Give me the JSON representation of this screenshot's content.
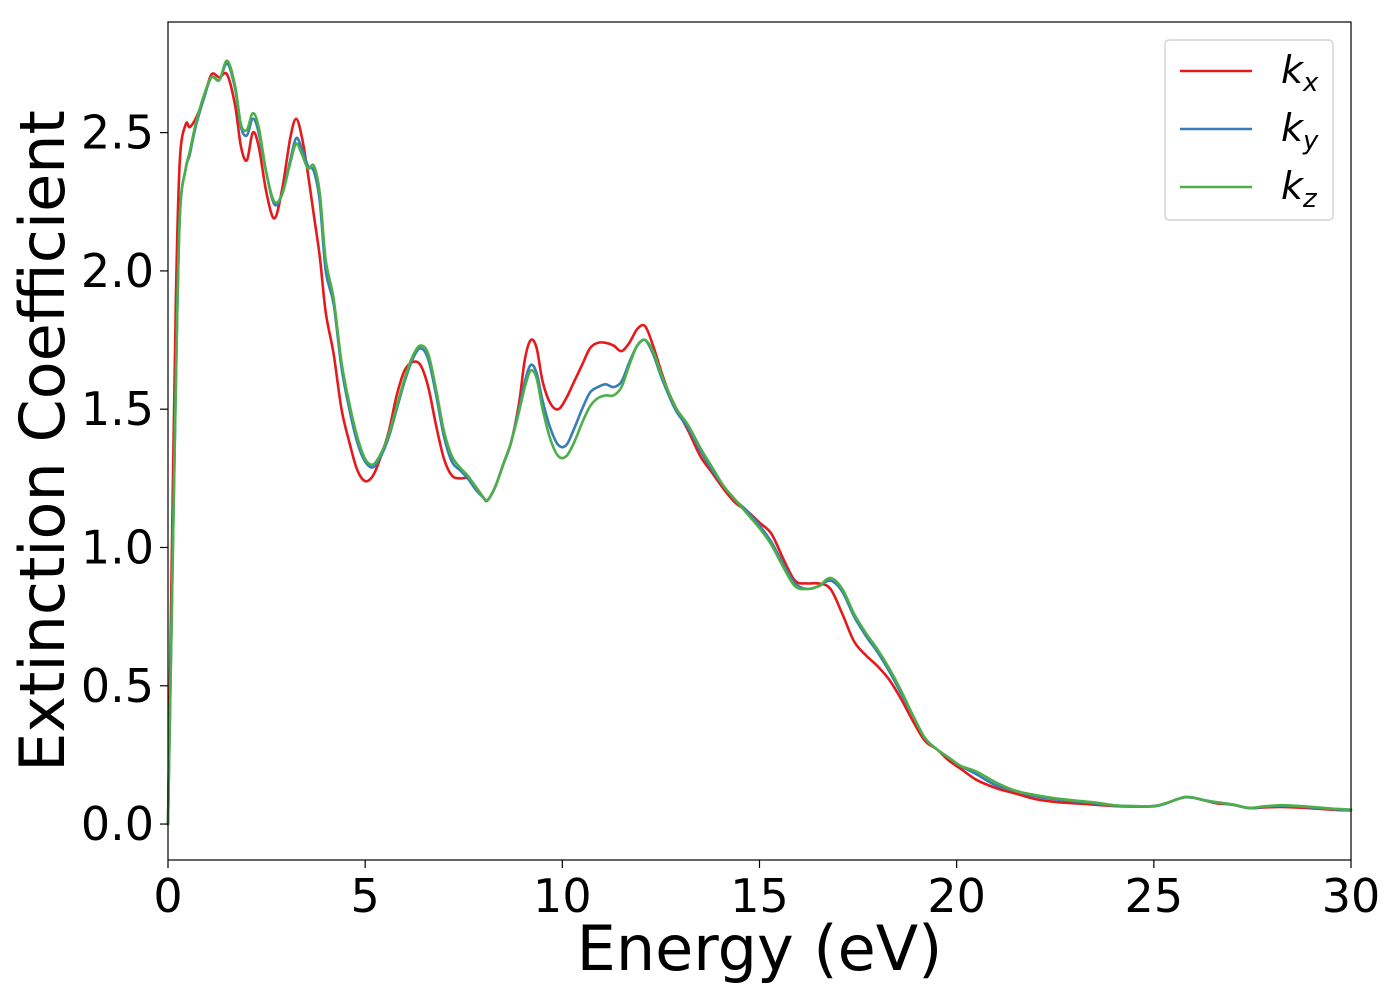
{
  "chart_data": {
    "type": "line",
    "title": "",
    "xlabel": "Energy (eV)",
    "ylabel": "Extinction Coefficient",
    "xlim": [
      0,
      30
    ],
    "ylim": [
      -0.13,
      2.9
    ],
    "xticks": [
      0,
      5,
      10,
      15,
      20,
      25,
      30
    ],
    "xtick_labels": [
      "0",
      "5",
      "10",
      "15",
      "20",
      "25",
      "30"
    ],
    "yticks": [
      0.0,
      0.5,
      1.0,
      1.5,
      2.0,
      2.5
    ],
    "ytick_labels": [
      "0.0",
      "0.5",
      "1.0",
      "1.5",
      "2.0",
      "2.5"
    ],
    "grid": false,
    "legend_position": "top-right",
    "series": [
      {
        "name": "k_x",
        "legend_base": "k",
        "legend_sub": "x",
        "color": "#e41a1c",
        "x": [
          0,
          0.1,
          0.2,
          0.3,
          0.45,
          0.55,
          0.7,
          0.9,
          1.1,
          1.3,
          1.5,
          1.7,
          1.85,
          2.0,
          2.15,
          2.3,
          2.5,
          2.7,
          2.9,
          3.1,
          3.25,
          3.4,
          3.55,
          3.7,
          3.85,
          4.0,
          4.2,
          4.4,
          4.6,
          4.8,
          5.0,
          5.2,
          5.4,
          5.6,
          5.8,
          6.0,
          6.2,
          6.4,
          6.6,
          6.8,
          7.0,
          7.2,
          7.4,
          7.6,
          7.8,
          8.0,
          8.1,
          8.3,
          8.5,
          8.7,
          8.9,
          9.05,
          9.2,
          9.35,
          9.5,
          9.7,
          9.9,
          10.1,
          10.3,
          10.5,
          10.7,
          10.9,
          11.1,
          11.3,
          11.5,
          11.7,
          11.9,
          12.1,
          12.3,
          12.5,
          12.7,
          12.9,
          13.2,
          13.5,
          13.8,
          14.1,
          14.4,
          14.7,
          15.0,
          15.3,
          15.6,
          15.9,
          16.2,
          16.5,
          16.8,
          17.1,
          17.4,
          17.7,
          18.0,
          18.3,
          18.6,
          18.9,
          19.2,
          19.5,
          19.8,
          20.1,
          20.5,
          21.0,
          21.5,
          22.0,
          22.5,
          23.0,
          23.5,
          24.0,
          24.5,
          25.0,
          25.3,
          25.6,
          25.8,
          26.0,
          26.3,
          26.6,
          27.0,
          27.4,
          27.8,
          28.2,
          28.6,
          29.0,
          29.5,
          30.0
        ],
        "y": [
          0.0,
          1.0,
          1.9,
          2.4,
          2.53,
          2.52,
          2.55,
          2.62,
          2.71,
          2.7,
          2.71,
          2.6,
          2.45,
          2.4,
          2.5,
          2.45,
          2.28,
          2.19,
          2.3,
          2.48,
          2.55,
          2.48,
          2.35,
          2.2,
          2.05,
          1.85,
          1.7,
          1.5,
          1.38,
          1.28,
          1.24,
          1.26,
          1.33,
          1.42,
          1.55,
          1.64,
          1.67,
          1.66,
          1.58,
          1.44,
          1.32,
          1.26,
          1.25,
          1.25,
          1.22,
          1.18,
          1.17,
          1.22,
          1.3,
          1.38,
          1.52,
          1.68,
          1.75,
          1.72,
          1.6,
          1.52,
          1.5,
          1.54,
          1.6,
          1.66,
          1.72,
          1.74,
          1.74,
          1.73,
          1.71,
          1.74,
          1.79,
          1.8,
          1.73,
          1.64,
          1.56,
          1.5,
          1.42,
          1.33,
          1.27,
          1.21,
          1.16,
          1.13,
          1.09,
          1.05,
          0.96,
          0.88,
          0.87,
          0.87,
          0.85,
          0.76,
          0.66,
          0.61,
          0.57,
          0.52,
          0.45,
          0.37,
          0.3,
          0.27,
          0.23,
          0.2,
          0.16,
          0.13,
          0.11,
          0.09,
          0.08,
          0.075,
          0.07,
          0.065,
          0.063,
          0.065,
          0.075,
          0.09,
          0.097,
          0.095,
          0.085,
          0.075,
          0.07,
          0.058,
          0.06,
          0.062,
          0.06,
          0.057,
          0.052,
          0.049
        ]
      },
      {
        "name": "k_y",
        "legend_base": "k",
        "legend_sub": "y",
        "color": "#377eb8",
        "x": [
          0,
          0.1,
          0.2,
          0.3,
          0.45,
          0.55,
          0.7,
          0.9,
          1.1,
          1.3,
          1.5,
          1.7,
          1.85,
          2.0,
          2.15,
          2.3,
          2.5,
          2.7,
          2.9,
          3.1,
          3.25,
          3.4,
          3.55,
          3.7,
          3.85,
          4.0,
          4.2,
          4.4,
          4.6,
          4.8,
          5.0,
          5.2,
          5.4,
          5.6,
          5.8,
          6.0,
          6.2,
          6.4,
          6.6,
          6.8,
          7.0,
          7.2,
          7.4,
          7.6,
          7.8,
          8.0,
          8.1,
          8.3,
          8.5,
          8.7,
          8.9,
          9.05,
          9.2,
          9.35,
          9.5,
          9.7,
          9.9,
          10.1,
          10.3,
          10.5,
          10.7,
          10.9,
          11.1,
          11.3,
          11.5,
          11.7,
          11.9,
          12.1,
          12.3,
          12.5,
          12.7,
          12.9,
          13.2,
          13.5,
          13.8,
          14.1,
          14.4,
          14.7,
          15.0,
          15.3,
          15.6,
          15.9,
          16.2,
          16.5,
          16.8,
          17.1,
          17.4,
          17.7,
          18.0,
          18.3,
          18.6,
          18.9,
          19.2,
          19.5,
          19.8,
          20.1,
          20.5,
          21.0,
          21.5,
          22.0,
          22.5,
          23.0,
          23.5,
          24.0,
          24.5,
          25.0,
          25.3,
          25.6,
          25.8,
          26.0,
          26.3,
          26.6,
          27.0,
          27.4,
          27.8,
          28.2,
          28.6,
          29.0,
          29.5,
          30.0
        ],
        "y": [
          0.0,
          0.8,
          1.6,
          2.2,
          2.37,
          2.42,
          2.52,
          2.62,
          2.7,
          2.69,
          2.75,
          2.66,
          2.52,
          2.49,
          2.55,
          2.5,
          2.35,
          2.24,
          2.28,
          2.4,
          2.48,
          2.44,
          2.38,
          2.36,
          2.25,
          2.0,
          1.88,
          1.65,
          1.5,
          1.38,
          1.31,
          1.29,
          1.33,
          1.4,
          1.5,
          1.6,
          1.68,
          1.72,
          1.68,
          1.55,
          1.4,
          1.31,
          1.28,
          1.25,
          1.21,
          1.18,
          1.17,
          1.22,
          1.3,
          1.38,
          1.5,
          1.6,
          1.66,
          1.63,
          1.53,
          1.43,
          1.37,
          1.37,
          1.43,
          1.5,
          1.56,
          1.58,
          1.59,
          1.58,
          1.6,
          1.67,
          1.73,
          1.75,
          1.7,
          1.62,
          1.55,
          1.49,
          1.43,
          1.35,
          1.28,
          1.22,
          1.17,
          1.13,
          1.08,
          1.02,
          0.94,
          0.87,
          0.85,
          0.86,
          0.88,
          0.84,
          0.75,
          0.68,
          0.62,
          0.55,
          0.47,
          0.39,
          0.31,
          0.27,
          0.24,
          0.21,
          0.18,
          0.14,
          0.12,
          0.1,
          0.09,
          0.082,
          0.075,
          0.067,
          0.064,
          0.064,
          0.074,
          0.09,
          0.097,
          0.095,
          0.085,
          0.078,
          0.07,
          0.058,
          0.062,
          0.066,
          0.064,
          0.06,
          0.054,
          0.05
        ]
      },
      {
        "name": "k_z",
        "legend_base": "k",
        "legend_sub": "z",
        "color": "#4daf4a",
        "x": [
          0,
          0.1,
          0.2,
          0.3,
          0.45,
          0.55,
          0.7,
          0.9,
          1.1,
          1.3,
          1.5,
          1.7,
          1.85,
          2.0,
          2.15,
          2.3,
          2.5,
          2.7,
          2.9,
          3.1,
          3.25,
          3.4,
          3.55,
          3.7,
          3.85,
          4.0,
          4.2,
          4.4,
          4.6,
          4.8,
          5.0,
          5.2,
          5.4,
          5.6,
          5.8,
          6.0,
          6.2,
          6.4,
          6.6,
          6.8,
          7.0,
          7.2,
          7.4,
          7.6,
          7.8,
          8.0,
          8.1,
          8.3,
          8.5,
          8.7,
          8.9,
          9.05,
          9.2,
          9.35,
          9.5,
          9.7,
          9.9,
          10.1,
          10.3,
          10.5,
          10.7,
          10.9,
          11.1,
          11.3,
          11.5,
          11.7,
          11.9,
          12.1,
          12.3,
          12.5,
          12.7,
          12.9,
          13.2,
          13.5,
          13.8,
          14.1,
          14.4,
          14.7,
          15.0,
          15.3,
          15.6,
          15.9,
          16.2,
          16.5,
          16.8,
          17.1,
          17.4,
          17.7,
          18.0,
          18.3,
          18.6,
          18.9,
          19.2,
          19.5,
          19.8,
          20.1,
          20.5,
          21.0,
          21.5,
          22.0,
          22.5,
          23.0,
          23.5,
          24.0,
          24.5,
          25.0,
          25.3,
          25.6,
          25.8,
          26.0,
          26.3,
          26.6,
          27.0,
          27.4,
          27.8,
          28.2,
          28.6,
          29.0,
          29.5,
          30.0
        ],
        "y": [
          0.0,
          0.8,
          1.6,
          2.2,
          2.37,
          2.43,
          2.53,
          2.63,
          2.7,
          2.69,
          2.76,
          2.67,
          2.53,
          2.51,
          2.57,
          2.52,
          2.35,
          2.25,
          2.28,
          2.39,
          2.46,
          2.42,
          2.37,
          2.38,
          2.28,
          2.04,
          1.9,
          1.67,
          1.52,
          1.4,
          1.32,
          1.3,
          1.34,
          1.41,
          1.51,
          1.61,
          1.69,
          1.73,
          1.7,
          1.57,
          1.42,
          1.33,
          1.29,
          1.26,
          1.22,
          1.18,
          1.17,
          1.22,
          1.3,
          1.38,
          1.49,
          1.58,
          1.64,
          1.61,
          1.5,
          1.39,
          1.33,
          1.33,
          1.38,
          1.45,
          1.51,
          1.54,
          1.55,
          1.55,
          1.58,
          1.66,
          1.73,
          1.75,
          1.71,
          1.63,
          1.56,
          1.5,
          1.44,
          1.36,
          1.29,
          1.22,
          1.17,
          1.12,
          1.07,
          1.01,
          0.93,
          0.86,
          0.85,
          0.86,
          0.89,
          0.85,
          0.76,
          0.69,
          0.63,
          0.56,
          0.48,
          0.39,
          0.31,
          0.27,
          0.24,
          0.21,
          0.19,
          0.15,
          0.12,
          0.105,
          0.093,
          0.085,
          0.078,
          0.068,
          0.065,
          0.065,
          0.075,
          0.09,
          0.098,
          0.096,
          0.086,
          0.079,
          0.071,
          0.059,
          0.064,
          0.068,
          0.066,
          0.062,
          0.056,
          0.052
        ]
      }
    ]
  }
}
